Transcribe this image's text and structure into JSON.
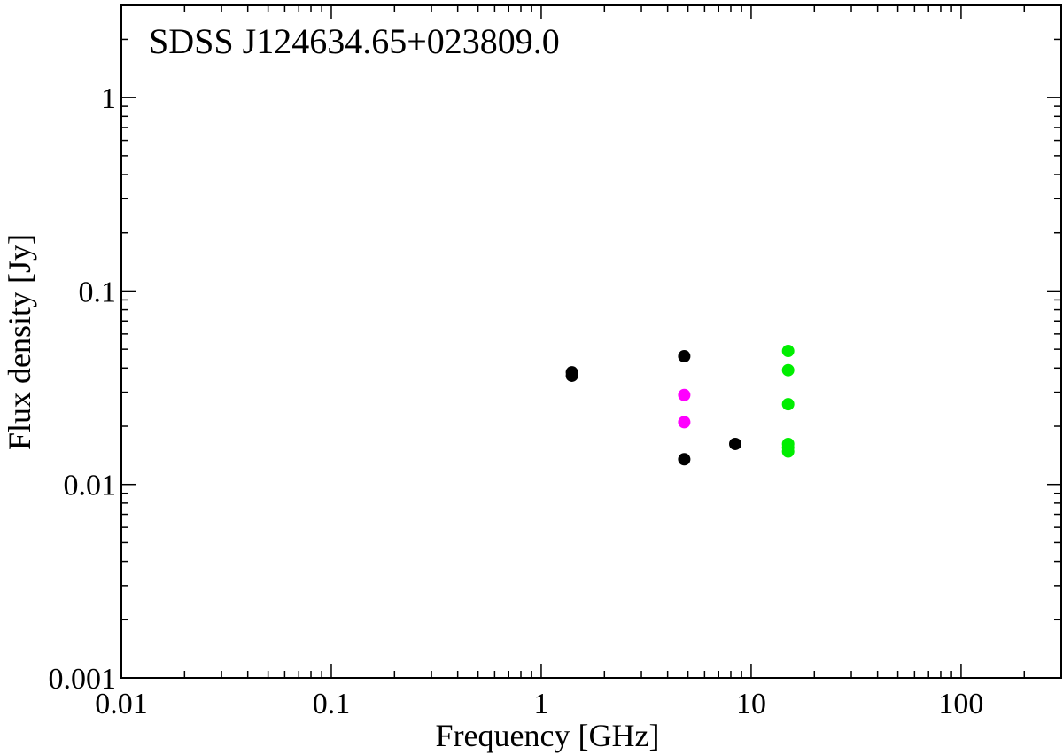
{
  "chart_data": {
    "type": "scatter",
    "title": "SDSS J124634.65+023809.0",
    "xlabel": "Frequency [GHz]",
    "ylabel": "Flux density [Jy]",
    "x_scale": "log",
    "y_scale": "log",
    "xlim": [
      0.01,
      300
    ],
    "ylim": [
      0.001,
      3
    ],
    "x_tick_labels": [
      "0.01",
      "0.1",
      "1",
      "10",
      "100"
    ],
    "y_tick_labels": [
      "0.001",
      "0.01",
      "0.1",
      "1"
    ],
    "grid": false,
    "series": [
      {
        "color": "#000000",
        "points": [
          {
            "x": 1.4,
            "y": 0.038
          },
          {
            "x": 1.4,
            "y": 0.0365
          },
          {
            "x": 4.8,
            "y": 0.046
          },
          {
            "x": 4.8,
            "y": 0.0135
          },
          {
            "x": 8.4,
            "y": 0.0162
          }
        ]
      },
      {
        "color": "#ff00ff",
        "points": [
          {
            "x": 4.8,
            "y": 0.029
          },
          {
            "x": 4.8,
            "y": 0.021
          }
        ]
      },
      {
        "color": "#00ee00",
        "points": [
          {
            "x": 15,
            "y": 0.049
          },
          {
            "x": 15,
            "y": 0.039
          },
          {
            "x": 15,
            "y": 0.026
          },
          {
            "x": 15,
            "y": 0.0162
          },
          {
            "x": 15,
            "y": 0.0155
          },
          {
            "x": 15,
            "y": 0.0148
          }
        ]
      }
    ]
  }
}
